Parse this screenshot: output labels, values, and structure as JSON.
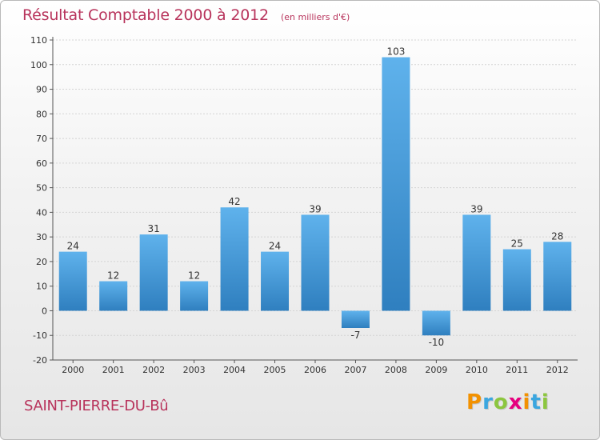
{
  "header": {
    "title": "Résultat Comptable 2000 à 2012",
    "unit_note": "(en milliers d'€)"
  },
  "footer": {
    "commune": "SAINT-PIERRE-DU-Bû",
    "brand": [
      "P",
      "r",
      "o",
      "x",
      "i",
      "t",
      "i"
    ],
    "brand_colors": [
      "#f29100",
      "#3ba6df",
      "#8cc63f",
      "#e6007e",
      "#f29100",
      "#3ba6df",
      "#8cc63f"
    ]
  },
  "colors": {
    "bar_top": "#5fb2ec",
    "bar_bottom": "#2f7fbf",
    "axis": "#555555",
    "grid": "#d4d4d4",
    "title": "#b8345c"
  },
  "chart_data": {
    "type": "bar",
    "categories": [
      "2000",
      "2001",
      "2002",
      "2003",
      "2004",
      "2005",
      "2006",
      "2007",
      "2008",
      "2009",
      "2010",
      "2011",
      "2012"
    ],
    "values": [
      24,
      12,
      31,
      12,
      42,
      24,
      39,
      -7,
      103,
      -10,
      39,
      25,
      28
    ],
    "ylim": [
      -20,
      110
    ],
    "yticks": [
      -20,
      -10,
      0,
      10,
      20,
      30,
      40,
      50,
      60,
      70,
      80,
      90,
      100,
      110
    ],
    "grid": true,
    "xlabel": "",
    "ylabel": ""
  }
}
